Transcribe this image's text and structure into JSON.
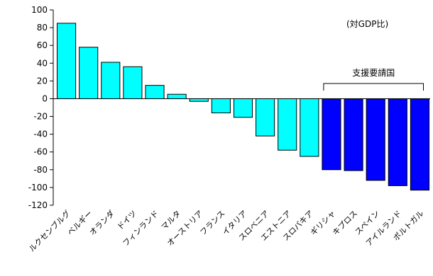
{
  "chart_data": {
    "type": "bar",
    "note": "(対GDP比)",
    "bracket_label": "支援要請国",
    "ylim": [
      -120,
      100
    ],
    "yticks": [
      100,
      80,
      60,
      40,
      20,
      0,
      -20,
      -40,
      -60,
      -80,
      -100,
      -120
    ],
    "grid": false,
    "categories": [
      "ルクセンブルグ",
      "ベルギー",
      "オランダ",
      "ドイツ",
      "フィンランド",
      "マルタ",
      "オーストリア",
      "フランス",
      "イタリア",
      "スロベニア",
      "エストニア",
      "スロバキア",
      "ギリシャ",
      "キプロス",
      "スペイン",
      "アイルランド",
      "ポルトガル"
    ],
    "values": [
      85,
      58,
      41,
      36,
      15,
      5,
      -3,
      -16,
      -21,
      -42,
      -58,
      -65,
      -80,
      -81,
      -92,
      -98,
      -103
    ],
    "colors": {
      "default": "#00ffff",
      "support_request": "#0000ff"
    },
    "support_request_categories": [
      "ギリシャ",
      "キプロス",
      "スペイン",
      "アイルランド",
      "ポルトガル"
    ]
  }
}
